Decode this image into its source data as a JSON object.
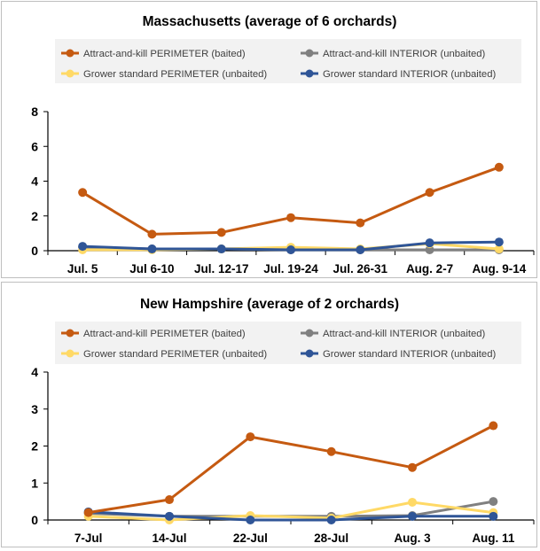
{
  "chart_data": [
    {
      "type": "line",
      "title": "Massachusetts (average of 6 orchards)",
      "categories": [
        "Jul. 5",
        "Jul 6-10",
        "Jul. 12-17",
        "Jul. 19-24",
        "Jul. 26-31",
        "Aug. 2-7",
        "Aug. 9-14"
      ],
      "ylim": [
        0,
        8
      ],
      "yticks": [
        0,
        2,
        4,
        6,
        8
      ],
      "grid": false,
      "legend_position": "top",
      "series": [
        {
          "name": "Attract-and-kill PERIMETER (baited)",
          "color": "#C55A11",
          "values": [
            3.35,
            0.95,
            1.05,
            1.9,
            1.6,
            3.35,
            4.8
          ]
        },
        {
          "name": "Attract-and-kill INTERIOR (unbaited)",
          "color": "#808080",
          "values": [
            0.2,
            0.1,
            0.1,
            0.05,
            0.05,
            0.05,
            0.05
          ]
        },
        {
          "name": "Grower standard PERIMETER (unbaited)",
          "color": "#FFD966",
          "values": [
            0.05,
            0.05,
            0.1,
            0.2,
            0.1,
            0.4,
            0.1
          ]
        },
        {
          "name": "Grower standard INTERIOR (unbaited)",
          "color": "#2F5597",
          "values": [
            0.25,
            0.1,
            0.1,
            0.05,
            0.05,
            0.45,
            0.5
          ]
        }
      ]
    },
    {
      "type": "line",
      "title": "New Hampshire (average of 2 orchards)",
      "categories": [
        "7-Jul",
        "14-Jul",
        "22-Jul",
        "28-Jul",
        "Aug. 3",
        "Aug. 11"
      ],
      "ylim": [
        0,
        4
      ],
      "yticks": [
        0,
        1,
        2,
        3,
        4
      ],
      "grid": false,
      "legend_position": "top",
      "series": [
        {
          "name": "Attract-and-kill PERIMETER (baited)",
          "color": "#C55A11",
          "values": [
            0.2,
            0.55,
            2.25,
            1.85,
            1.42,
            2.55
          ]
        },
        {
          "name": "Attract-and-kill INTERIOR (unbaited)",
          "color": "#808080",
          "values": [
            0.18,
            0.1,
            0.1,
            0.1,
            0.12,
            0.5
          ]
        },
        {
          "name": "Grower standard PERIMETER (unbaited)",
          "color": "#FFD966",
          "values": [
            0.1,
            0.0,
            0.12,
            0.05,
            0.48,
            0.2
          ]
        },
        {
          "name": "Grower standard INTERIOR (unbaited)",
          "color": "#2F5597",
          "values": [
            0.22,
            0.1,
            0.0,
            0.0,
            0.1,
            0.1
          ]
        }
      ]
    }
  ]
}
